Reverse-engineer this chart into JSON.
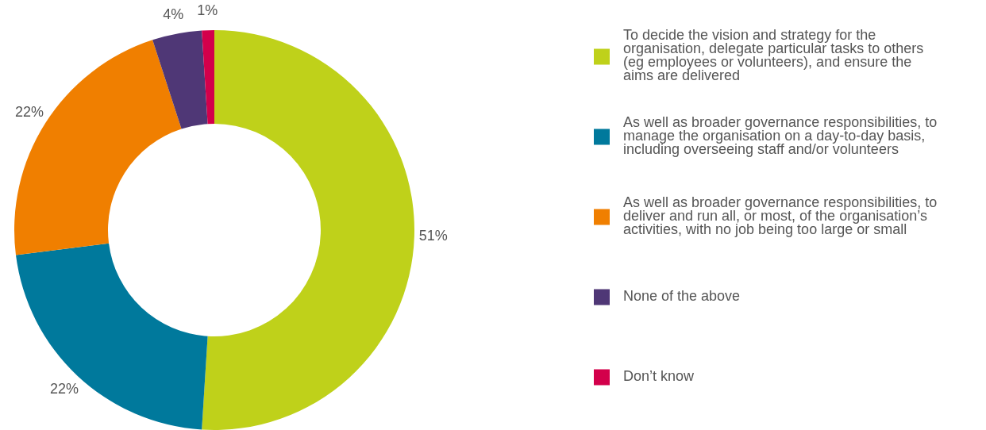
{
  "chart_data": {
    "type": "donut",
    "categories": [
      "To decide the vision and strategy for the organisation, delegate particular tasks to others (eg employees or volunteers), and ensure the aims are delivered",
      "As well as broader governance responsibilities, to manage the organisation on a day-to-day basis, including overseeing staff and/or volunteers",
      "As well as broader governance responsibilities, to deliver and run all, or most, of the organisation’s activities, with no job being too large or small",
      "None of the above",
      "Don’t know"
    ],
    "values": [
      51,
      22,
      22,
      4,
      1
    ],
    "colors": [
      "#bfd11a",
      "#00799c",
      "#f07f00",
      "#4f3776",
      "#d3004b"
    ],
    "value_labels": [
      "51%",
      "22%",
      "22%",
      "4%",
      "1%"
    ],
    "legend": "right"
  }
}
